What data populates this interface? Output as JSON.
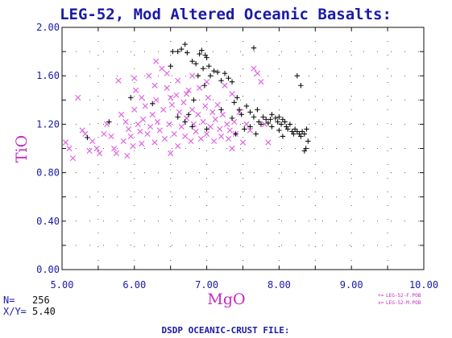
{
  "chart_data": {
    "type": "scatter",
    "title": "LEG-52, Mod Altered Oceanic Basalts:",
    "xlabel": "MgO",
    "ylabel": "TiO",
    "xlim": [
      5.0,
      10.0
    ],
    "ylim": [
      0.0,
      2.0
    ],
    "xticks": [
      "5.00",
      "6.00",
      "7.00",
      "8.00",
      "9.00",
      "10.00"
    ],
    "yticks": [
      "0.00",
      "0.40",
      "0.80",
      "1.20",
      "1.60",
      "2.00"
    ],
    "grid": true,
    "legend_position": "bottom-right",
    "footer": "DSDP OCEANIC-CRUST FILE:",
    "stats": {
      "n_label": "N=",
      "n_value": "256",
      "ratio_label": "X/Y=",
      "ratio_value": "5.40"
    },
    "colors": {
      "axis_text": "#1a1aa8",
      "label": "#c42bc4",
      "series_f": "#111111",
      "series_m": "#e15be1"
    },
    "series": [
      {
        "name": "LEG-52-F.POB",
        "legend_symbol": "+=",
        "marker": "plus",
        "points": [
          [
            5.35,
            1.09
          ],
          [
            5.65,
            1.22
          ],
          [
            5.95,
            1.42
          ],
          [
            6.25,
            1.37
          ],
          [
            6.5,
            1.68
          ],
          [
            6.53,
            1.8
          ],
          [
            6.6,
            1.8
          ],
          [
            6.65,
            1.82
          ],
          [
            6.7,
            1.86
          ],
          [
            6.73,
            1.79
          ],
          [
            6.8,
            1.72
          ],
          [
            6.85,
            1.7
          ],
          [
            6.9,
            1.78
          ],
          [
            6.93,
            1.81
          ],
          [
            6.98,
            1.77
          ],
          [
            7.0,
            1.75
          ],
          [
            6.95,
            1.66
          ],
          [
            7.03,
            1.68
          ],
          [
            7.1,
            1.64
          ],
          [
            7.15,
            1.63
          ],
          [
            7.2,
            1.56
          ],
          [
            7.25,
            1.62
          ],
          [
            7.3,
            1.58
          ],
          [
            7.35,
            1.55
          ],
          [
            6.88,
            1.6
          ],
          [
            6.97,
            1.52
          ],
          [
            7.05,
            1.6
          ],
          [
            6.75,
            1.28
          ],
          [
            6.82,
            1.4
          ],
          [
            6.6,
            1.26
          ],
          [
            6.7,
            1.22
          ],
          [
            6.8,
            1.18
          ],
          [
            7.0,
            1.16
          ],
          [
            7.2,
            1.32
          ],
          [
            7.35,
            1.25
          ],
          [
            7.38,
            1.38
          ],
          [
            7.42,
            1.42
          ],
          [
            7.45,
            1.32
          ],
          [
            7.48,
            1.28
          ],
          [
            7.55,
            1.35
          ],
          [
            7.6,
            1.3
          ],
          [
            7.65,
            1.26
          ],
          [
            7.7,
            1.32
          ],
          [
            7.72,
            1.22
          ],
          [
            7.78,
            1.26
          ],
          [
            7.82,
            1.24
          ],
          [
            7.85,
            1.21
          ],
          [
            7.88,
            1.24
          ],
          [
            7.9,
            1.28
          ],
          [
            7.95,
            1.25
          ],
          [
            7.98,
            1.22
          ],
          [
            8.0,
            1.26
          ],
          [
            8.03,
            1.2
          ],
          [
            8.05,
            1.24
          ],
          [
            8.08,
            1.22
          ],
          [
            8.1,
            1.18
          ],
          [
            8.12,
            1.16
          ],
          [
            8.15,
            1.2
          ],
          [
            8.18,
            1.14
          ],
          [
            8.2,
            1.12
          ],
          [
            8.22,
            1.16
          ],
          [
            8.25,
            1.14
          ],
          [
            8.28,
            1.12
          ],
          [
            8.3,
            1.1
          ],
          [
            8.32,
            1.14
          ],
          [
            8.35,
            1.12
          ],
          [
            8.38,
            1.16
          ],
          [
            8.4,
            1.06
          ],
          [
            8.37,
            1.0
          ],
          [
            8.35,
            0.98
          ],
          [
            8.25,
            1.6
          ],
          [
            8.3,
            1.52
          ],
          [
            7.6,
            1.18
          ],
          [
            7.52,
            1.16
          ],
          [
            7.4,
            1.12
          ],
          [
            7.65,
            1.83
          ],
          [
            7.75,
            1.2
          ],
          [
            8.05,
            1.1
          ],
          [
            8.0,
            1.15
          ],
          [
            7.9,
            1.18
          ],
          [
            7.68,
            1.12
          ]
        ]
      },
      {
        "name": "LEG-52-M.POB",
        "legend_symbol": "x=",
        "marker": "x",
        "points": [
          [
            5.05,
            1.05
          ],
          [
            5.1,
            1.0
          ],
          [
            5.15,
            0.92
          ],
          [
            5.22,
            1.42
          ],
          [
            5.28,
            1.15
          ],
          [
            5.32,
            1.12
          ],
          [
            5.38,
            0.98
          ],
          [
            5.42,
            1.06
          ],
          [
            5.48,
            1.0
          ],
          [
            5.52,
            0.96
          ],
          [
            5.58,
            1.12
          ],
          [
            5.62,
            1.2
          ],
          [
            5.68,
            1.1
          ],
          [
            5.72,
            1.0
          ],
          [
            5.75,
            0.96
          ],
          [
            5.78,
            1.56
          ],
          [
            5.82,
            1.28
          ],
          [
            5.85,
            1.06
          ],
          [
            5.88,
            1.22
          ],
          [
            5.92,
            1.16
          ],
          [
            5.95,
            1.1
          ],
          [
            5.98,
            1.02
          ],
          [
            6.0,
            1.32
          ],
          [
            6.02,
            1.48
          ],
          [
            6.05,
            1.2
          ],
          [
            6.08,
            1.14
          ],
          [
            6.1,
            1.04
          ],
          [
            6.12,
            1.24
          ],
          [
            6.15,
            1.35
          ],
          [
            6.18,
            1.12
          ],
          [
            6.2,
            1.6
          ],
          [
            6.22,
            1.18
          ],
          [
            6.25,
            1.28
          ],
          [
            6.28,
            1.05
          ],
          [
            6.3,
            1.4
          ],
          [
            6.32,
            1.22
          ],
          [
            6.35,
            1.15
          ],
          [
            6.38,
            1.66
          ],
          [
            6.4,
            1.32
          ],
          [
            6.42,
            1.08
          ],
          [
            6.45,
            1.5
          ],
          [
            6.48,
            1.2
          ],
          [
            6.5,
            0.96
          ],
          [
            6.52,
            1.36
          ],
          [
            6.55,
            1.12
          ],
          [
            6.58,
            1.44
          ],
          [
            6.6,
            1.02
          ],
          [
            6.62,
            1.3
          ],
          [
            6.65,
            1.18
          ],
          [
            6.68,
            1.38
          ],
          [
            6.7,
            1.1
          ],
          [
            6.72,
            1.25
          ],
          [
            6.75,
            1.48
          ],
          [
            6.78,
            1.06
          ],
          [
            6.8,
            1.32
          ],
          [
            6.82,
            1.2
          ],
          [
            6.85,
            1.14
          ],
          [
            6.88,
            1.28
          ],
          [
            6.9,
            1.5
          ],
          [
            6.92,
            1.08
          ],
          [
            6.95,
            1.22
          ],
          [
            6.98,
            1.35
          ],
          [
            7.0,
            1.12
          ],
          [
            7.02,
            1.42
          ],
          [
            7.05,
            1.18
          ],
          [
            7.08,
            1.3
          ],
          [
            7.1,
            1.06
          ],
          [
            7.12,
            1.24
          ],
          [
            7.15,
            1.36
          ],
          [
            7.18,
            1.16
          ],
          [
            7.2,
            1.1
          ],
          [
            7.22,
            1.28
          ],
          [
            7.25,
            1.52
          ],
          [
            7.28,
            1.2
          ],
          [
            7.3,
            1.08
          ],
          [
            7.32,
            1.15
          ],
          [
            7.35,
            1.0
          ],
          [
            7.38,
            1.22
          ],
          [
            7.4,
            1.12
          ],
          [
            7.45,
            1.3
          ],
          [
            7.5,
            1.05
          ],
          [
            7.55,
            1.2
          ],
          [
            7.6,
            1.15
          ],
          [
            7.65,
            1.66
          ],
          [
            7.7,
            1.62
          ],
          [
            7.75,
            1.55
          ],
          [
            7.8,
            1.2
          ],
          [
            7.85,
            1.05
          ],
          [
            6.0,
            1.58
          ],
          [
            6.3,
            1.72
          ],
          [
            6.45,
            1.62
          ],
          [
            6.6,
            1.56
          ],
          [
            6.8,
            1.6
          ],
          [
            7.0,
            1.55
          ],
          [
            5.9,
            0.94
          ],
          [
            6.1,
            1.42
          ],
          [
            6.28,
            1.52
          ],
          [
            6.5,
            1.42
          ],
          [
            6.72,
            1.45
          ],
          [
            7.35,
            1.45
          ]
        ]
      }
    ]
  }
}
